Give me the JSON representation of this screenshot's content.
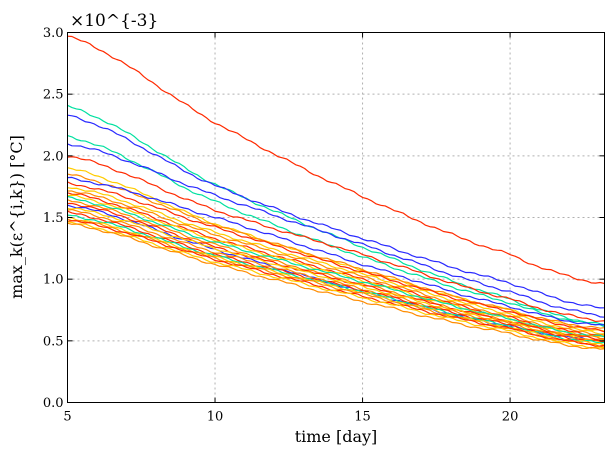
{
  "chart_data": {
    "type": "line",
    "title": "",
    "xlabel": "time [day]",
    "ylabel": "max_k(ε^{i,k}) [°C]",
    "y_multiplier": "×10^{-3}",
    "xlim": [
      5,
      23.2
    ],
    "ylim": [
      0.0,
      3.0
    ],
    "xticks": [
      5,
      10,
      15,
      20
    ],
    "yticks": [
      "0.0",
      "0.5",
      "1.0",
      "1.5",
      "2.0",
      "2.5",
      "3.0"
    ],
    "grid": true,
    "x": [
      5,
      10,
      15,
      20,
      23.2
    ],
    "series": [
      {
        "color": "#ff2a00",
        "values": [
          2.97,
          2.27,
          1.67,
          1.2,
          0.96
        ]
      },
      {
        "color": "#00e0a0",
        "values": [
          2.4,
          1.77,
          1.26,
          0.84,
          0.63
        ]
      },
      {
        "color": "#2a2aff",
        "values": [
          2.33,
          1.76,
          1.33,
          0.97,
          0.76
        ]
      },
      {
        "color": "#00e0a0",
        "values": [
          2.16,
          1.63,
          1.18,
          0.81,
          0.62
        ]
      },
      {
        "color": "#2a2aff",
        "values": [
          2.1,
          1.68,
          1.28,
          0.9,
          0.7
        ]
      },
      {
        "color": "#ff2a00",
        "values": [
          2.0,
          1.56,
          1.2,
          0.84,
          0.66
        ]
      },
      {
        "color": "#ffcc00",
        "values": [
          1.9,
          1.45,
          1.07,
          0.75,
          0.58
        ]
      },
      {
        "color": "#ff8c00",
        "values": [
          1.85,
          1.44,
          1.08,
          0.75,
          0.6
        ]
      },
      {
        "color": "#2a2aff",
        "values": [
          1.82,
          1.5,
          1.12,
          0.78,
          0.62
        ]
      },
      {
        "color": "#ff2a00",
        "values": [
          1.78,
          1.42,
          1.06,
          0.74,
          0.58
        ]
      },
      {
        "color": "#ffcc00",
        "values": [
          1.75,
          1.38,
          1.04,
          0.72,
          0.56
        ]
      },
      {
        "color": "#ff8c00",
        "values": [
          1.72,
          1.36,
          1.02,
          0.7,
          0.55
        ]
      },
      {
        "color": "#ff2a00",
        "values": [
          1.7,
          1.33,
          1.0,
          0.69,
          0.54
        ]
      },
      {
        "color": "#ffcc00",
        "values": [
          1.68,
          1.32,
          0.99,
          0.68,
          0.53
        ]
      },
      {
        "color": "#00e0a0",
        "values": [
          1.66,
          1.3,
          0.98,
          0.68,
          0.53
        ]
      },
      {
        "color": "#ff8c00",
        "values": [
          1.64,
          1.28,
          0.96,
          0.66,
          0.52
        ]
      },
      {
        "color": "#ff2a00",
        "values": [
          1.62,
          1.26,
          0.95,
          0.66,
          0.51
        ]
      },
      {
        "color": "#2a2aff",
        "values": [
          1.6,
          1.24,
          0.9,
          0.62,
          0.5
        ]
      },
      {
        "color": "#ffcc00",
        "values": [
          1.58,
          1.25,
          0.94,
          0.65,
          0.5
        ]
      },
      {
        "color": "#ff8c00",
        "values": [
          1.56,
          1.22,
          0.92,
          0.64,
          0.5
        ]
      },
      {
        "color": "#ff2a00",
        "values": [
          1.54,
          1.2,
          0.91,
          0.63,
          0.49
        ]
      },
      {
        "color": "#00e0a0",
        "values": [
          1.52,
          1.19,
          0.9,
          0.62,
          0.48
        ]
      },
      {
        "color": "#ffcc00",
        "values": [
          1.5,
          1.18,
          0.89,
          0.61,
          0.47
        ]
      },
      {
        "color": "#ff8c00",
        "values": [
          1.49,
          1.17,
          0.88,
          0.6,
          0.46
        ]
      },
      {
        "color": "#ff2a00",
        "values": [
          1.48,
          1.16,
          0.86,
          0.6,
          0.46
        ]
      },
      {
        "color": "#ffcc00",
        "values": [
          1.46,
          1.14,
          0.85,
          0.58,
          0.44
        ]
      },
      {
        "color": "#ff8c00",
        "values": [
          1.45,
          1.12,
          0.82,
          0.56,
          0.43
        ]
      }
    ]
  }
}
